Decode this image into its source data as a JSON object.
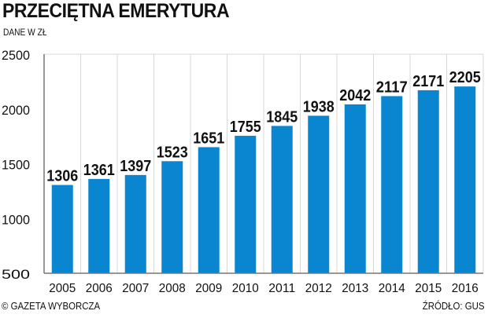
{
  "header": {
    "title": "PRZECIĘTNA EMERYTURA",
    "subtitle": "DANE W ZŁ"
  },
  "footer": {
    "copyright": "© GAZETA WYBORCZA",
    "source": "ŹRÓDŁO: GUS"
  },
  "colors": {
    "bar": "#0a86d0",
    "grid": "#d8d8d8",
    "axis": "#777777"
  },
  "chart_data": {
    "type": "bar",
    "title": "PRZECIĘTNA EMERYTURA",
    "subtitle": "DANE W ZŁ",
    "xlabel": "",
    "ylabel": "",
    "categories": [
      "2005",
      "2006",
      "2007",
      "2008",
      "2009",
      "2010",
      "2011",
      "2012",
      "2013",
      "2014",
      "2015",
      "2016"
    ],
    "values": [
      1306,
      1361,
      1397,
      1523,
      1651,
      1755,
      1845,
      1938,
      2042,
      2117,
      2171,
      2205
    ],
    "ylim": [
      500,
      2500
    ],
    "yticks": [
      500,
      1000,
      1500,
      2000,
      2500
    ],
    "grid": "vertical",
    "legend": "none"
  }
}
